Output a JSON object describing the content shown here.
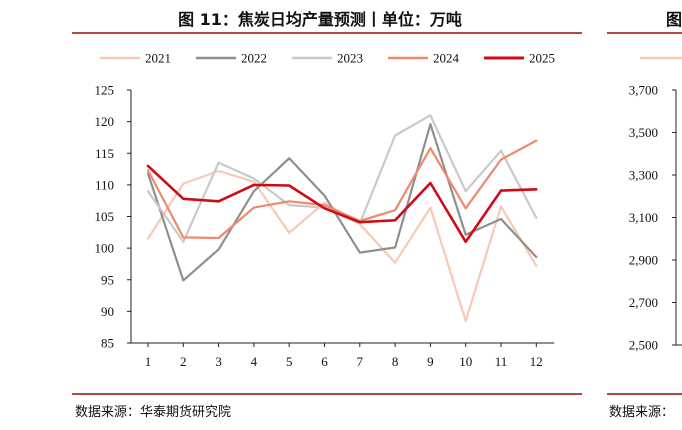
{
  "title": "图 11：焦炭日均产量预测丨单位：万吨",
  "source": "数据来源：华泰期货研究院",
  "right_panel": {
    "title_fragment": "图",
    "source_fragment": "数据来源：",
    "yticks": [
      "3,700",
      "3,500",
      "3,300",
      "3,100",
      "2,900",
      "2,700",
      "2,500"
    ]
  },
  "colors": {
    "2021": "#f8c9b4",
    "2022": "#8f8f8f",
    "2023": "#c9c9c9",
    "2024": "#ee8a6a",
    "2025": "#cc0d17",
    "rule": "#b24a46",
    "right_legend": "#f8c9b4"
  },
  "chart_data": {
    "type": "line",
    "title": "图 11：焦炭日均产量预测丨单位：万吨",
    "xlabel": "",
    "ylabel": "",
    "categories": [
      "1",
      "2",
      "3",
      "4",
      "5",
      "6",
      "7",
      "8",
      "9",
      "10",
      "11",
      "12"
    ],
    "ylim": [
      85,
      125
    ],
    "yticks": [
      125,
      120,
      115,
      110,
      105,
      100,
      95,
      90,
      85
    ],
    "legend_position": "top",
    "grid": false,
    "series": [
      {
        "name": "2021",
        "values": [
          101.5,
          110.2,
          112.2,
          110.5,
          102.4,
          107.2,
          103.8,
          97.7,
          106.4,
          88.5,
          106.6,
          97.2
        ]
      },
      {
        "name": "2022",
        "values": [
          111.8,
          94.9,
          99.8,
          109.0,
          114.2,
          108.3,
          99.3,
          100.1,
          119.6,
          102.1,
          104.6,
          98.6
        ]
      },
      {
        "name": "2023",
        "values": [
          109.0,
          101.0,
          113.5,
          111.0,
          106.8,
          106.4,
          103.9,
          117.8,
          121.0,
          109.0,
          115.4,
          104.8
        ]
      },
      {
        "name": "2024",
        "values": [
          112.3,
          101.7,
          101.6,
          106.4,
          107.4,
          106.8,
          104.3,
          106.0,
          115.8,
          106.3,
          114.0,
          117.0
        ]
      },
      {
        "name": "2025",
        "values": [
          113.0,
          107.8,
          107.4,
          110.0,
          109.9,
          106.3,
          104.1,
          104.4,
          110.3,
          101.0,
          109.1,
          109.3
        ]
      }
    ]
  }
}
